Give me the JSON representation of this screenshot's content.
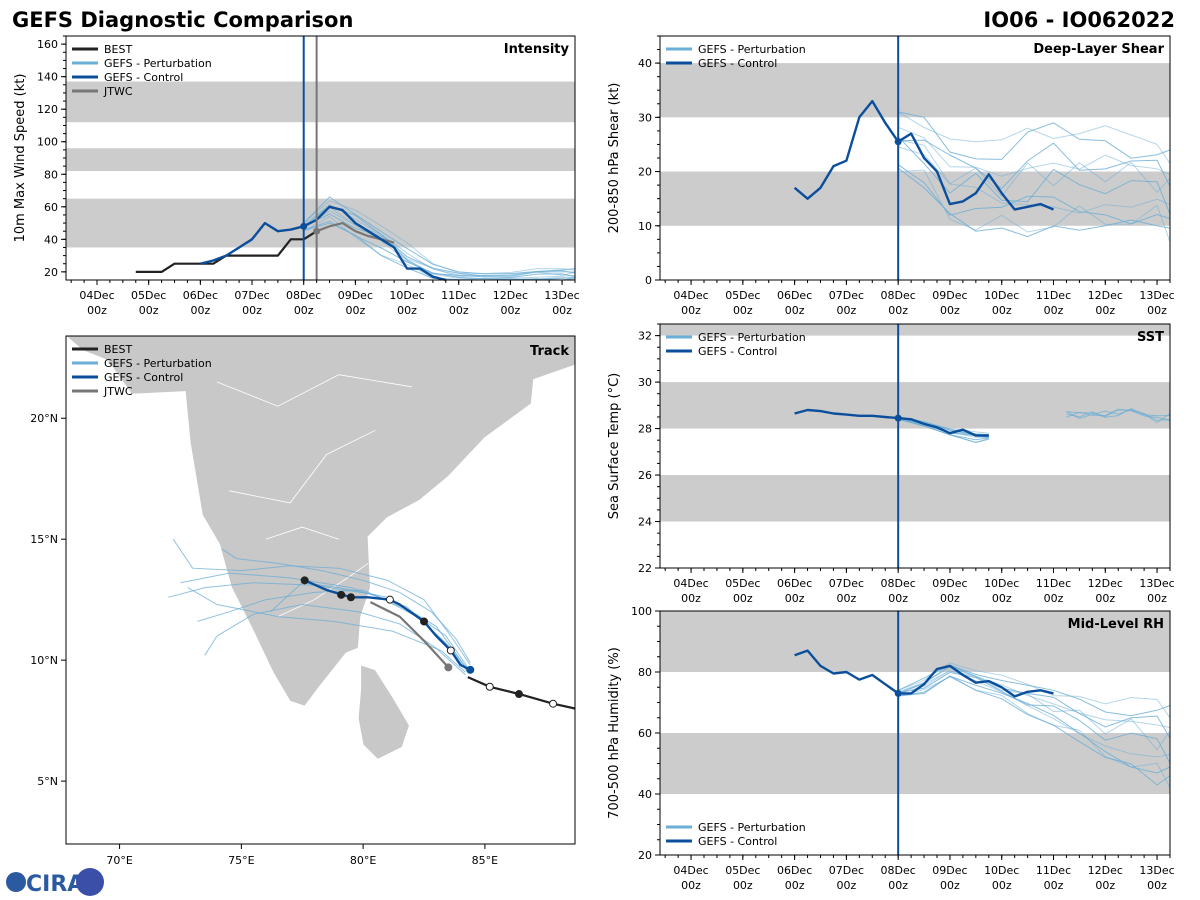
{
  "header": {
    "title": "GEFS Diagnostic Comparison",
    "storm_id": "IO06 - IO062022"
  },
  "logo": {
    "text": "CIRA"
  },
  "colors": {
    "best": "#222222",
    "perturbation": "#6baed6",
    "control": "#0b4f9c",
    "jtwc": "#777777",
    "band": "#cccccc",
    "land": "#c8c8c8"
  },
  "time_ticks": [
    "04Dec",
    "05Dec",
    "06Dec",
    "07Dec",
    "08Dec",
    "09Dec",
    "10Dec",
    "11Dec",
    "12Dec",
    "13Dec"
  ],
  "time_tick_sub": "00z",
  "chart_data": [
    {
      "id": "intensity",
      "type": "line",
      "title": "Intensity",
      "ylabel": "10m Max Wind Speed (kt)",
      "ylim": [
        15,
        165
      ],
      "yticks": [
        20,
        40,
        60,
        80,
        100,
        120,
        140,
        160
      ],
      "xlim": [
        3.4,
        13.25
      ],
      "init_day": 8.0,
      "jtwc_day": 8.25,
      "bands": [
        [
          35,
          65
        ],
        [
          82,
          96
        ],
        [
          112,
          137
        ]
      ],
      "legend": [
        "BEST",
        "GEFS - Perturbation",
        "GEFS - Control",
        "JTWC"
      ],
      "best": {
        "x": [
          4.75,
          5.0,
          5.25,
          5.5,
          5.75,
          6.0,
          6.25,
          6.5,
          6.75,
          7.0,
          7.25,
          7.5,
          7.75,
          8.0,
          8.25
        ],
        "y": [
          20,
          20,
          20,
          25,
          25,
          25,
          25,
          30,
          30,
          30,
          30,
          30,
          40,
          40,
          45
        ]
      },
      "jtwc": {
        "x": [
          8.25,
          8.5,
          8.75,
          9.0,
          9.25,
          9.5,
          9.75
        ],
        "y": [
          45,
          48,
          50,
          45,
          42,
          40,
          38
        ]
      },
      "control": {
        "x": [
          6.0,
          6.25,
          6.5,
          6.75,
          7.0,
          7.25,
          7.5,
          7.75,
          8.0,
          8.25,
          8.5,
          8.75,
          9.0,
          9.25,
          9.5,
          9.75,
          10.0,
          10.25,
          10.5,
          10.75
        ],
        "y": [
          25,
          27,
          30,
          35,
          40,
          50,
          45,
          46,
          48,
          52,
          60,
          58,
          50,
          45,
          40,
          35,
          22,
          22,
          17,
          15
        ]
      },
      "perturbation_spread": {
        "x": [
          8.0,
          8.5,
          9.0,
          9.5,
          10.0,
          10.5,
          11.0,
          11.5,
          12.0,
          12.5,
          13.0,
          13.25
        ],
        "lo": [
          45,
          50,
          40,
          30,
          20,
          16,
          15,
          15,
          15,
          15,
          15,
          15
        ],
        "hi": [
          50,
          66,
          58,
          50,
          38,
          25,
          20,
          19,
          20,
          22,
          22,
          22
        ]
      },
      "markers": [
        {
          "series": "control",
          "x": 8.0,
          "y": 48
        },
        {
          "series": "jtwc",
          "x": 8.25,
          "y": 45
        }
      ]
    },
    {
      "id": "shear",
      "type": "line",
      "title": "Deep-Layer Shear",
      "ylabel": "200-850 hPa Shear (kt)",
      "ylim": [
        0,
        45
      ],
      "yticks": [
        0,
        10,
        20,
        30,
        40
      ],
      "xlim": [
        3.4,
        13.25
      ],
      "init_day": 8.0,
      "bands": [
        [
          10,
          20
        ],
        [
          30,
          40
        ]
      ],
      "legend": [
        "GEFS - Perturbation",
        "GEFS - Control"
      ],
      "control": {
        "x": [
          6.0,
          6.25,
          6.5,
          6.75,
          7.0,
          7.25,
          7.5,
          7.75,
          8.0,
          8.25,
          8.5,
          8.75,
          9.0,
          9.25,
          9.5,
          9.75,
          10.0,
          10.25,
          10.5,
          10.75,
          11.0
        ],
        "y": [
          17,
          15,
          17,
          21,
          22,
          30,
          33,
          29,
          25.5,
          27,
          22.5,
          20,
          14,
          14.5,
          16,
          19.5,
          16,
          13,
          13.5,
          14,
          13
        ]
      },
      "perturbation_spread": {
        "x": [
          8.0,
          8.5,
          9.0,
          9.5,
          10.0,
          10.5,
          11.0,
          11.5,
          12.0,
          12.5,
          13.0,
          13.25
        ],
        "lo": [
          20,
          17,
          10,
          9,
          7,
          8,
          9,
          9,
          10,
          9,
          10,
          7
        ],
        "hi": [
          31,
          30,
          26,
          27,
          26,
          28,
          29,
          27,
          30,
          27,
          25,
          24
        ]
      },
      "markers": [
        {
          "series": "control",
          "x": 8.0,
          "y": 25.5
        }
      ]
    },
    {
      "id": "sst",
      "type": "line",
      "title": "SST",
      "ylabel": "Sea Surface Temp (°C)",
      "ylim": [
        22,
        32.5
      ],
      "yticks": [
        22,
        24,
        26,
        28,
        30,
        32
      ],
      "xlim": [
        3.4,
        13.25
      ],
      "init_day": 8.0,
      "bands": [
        [
          24,
          26
        ],
        [
          28,
          30
        ],
        [
          32,
          32.5
        ]
      ],
      "legend": [
        "GEFS - Perturbation",
        "GEFS - Control"
      ],
      "control": {
        "x": [
          6.0,
          6.25,
          6.5,
          6.75,
          7.0,
          7.25,
          7.5,
          7.75,
          8.0,
          8.25,
          8.5,
          8.75,
          9.0,
          9.25,
          9.5,
          9.75
        ],
        "y": [
          28.65,
          28.8,
          28.75,
          28.65,
          28.6,
          28.55,
          28.55,
          28.5,
          28.45,
          28.4,
          28.2,
          28.05,
          27.8,
          27.95,
          27.7,
          27.7
        ]
      },
      "perturbation_spread": {
        "x": [
          8.0,
          8.5,
          9.0,
          9.5,
          9.75
        ],
        "lo": [
          28.4,
          28.1,
          27.7,
          27.4,
          27.5
        ],
        "hi": [
          28.5,
          28.3,
          28.0,
          27.9,
          27.8
        ]
      },
      "perturbation_late": {
        "x": [
          11.25,
          11.5,
          11.75,
          12.0,
          12.25,
          12.5,
          12.75,
          13.0,
          13.25
        ],
        "y": [
          28.6,
          28.55,
          28.65,
          28.6,
          28.7,
          28.9,
          28.5,
          28.4,
          28.5
        ]
      },
      "markers": [
        {
          "series": "control",
          "x": 8.0,
          "y": 28.45
        }
      ]
    },
    {
      "id": "rh",
      "type": "line",
      "title": "Mid-Level RH",
      "ylabel": "700-500 hPa Humidity (%)",
      "ylim": [
        20,
        100
      ],
      "yticks": [
        20,
        40,
        60,
        80,
        100
      ],
      "xlim": [
        3.4,
        13.25
      ],
      "init_day": 8.0,
      "bands": [
        [
          40,
          60
        ],
        [
          80,
          100
        ]
      ],
      "legend": [
        "GEFS - Perturbation",
        "GEFS - Control"
      ],
      "control": {
        "x": [
          6.0,
          6.25,
          6.5,
          6.75,
          7.0,
          7.25,
          7.5,
          7.75,
          8.0,
          8.25,
          8.5,
          8.75,
          9.0,
          9.25,
          9.5,
          9.75,
          10.0,
          10.25,
          10.5,
          10.75,
          11.0
        ],
        "y": [
          85.5,
          87,
          82,
          79.5,
          80,
          77.5,
          79,
          76,
          73,
          73,
          76,
          81,
          82,
          79,
          76.5,
          77,
          75,
          72,
          73.5,
          74,
          73
        ]
      },
      "perturbation_spread": {
        "x": [
          8.0,
          8.5,
          9.0,
          9.5,
          10.0,
          10.5,
          11.0,
          11.5,
          12.0,
          12.5,
          13.0,
          13.25
        ],
        "lo": [
          72,
          73,
          78,
          74,
          70,
          66,
          62,
          57,
          52,
          47,
          43,
          42
        ],
        "hi": [
          74,
          78,
          83,
          81,
          79,
          76,
          74,
          72,
          71,
          72,
          71,
          69
        ]
      },
      "markers": [
        {
          "series": "control",
          "x": 8.0,
          "y": 73
        }
      ]
    },
    {
      "id": "track",
      "type": "line",
      "title": "Track",
      "lon_range": [
        67.8,
        88.7
      ],
      "lat_range": [
        2.4,
        23.4
      ],
      "lon_ticks": [
        "70°E",
        "75°E",
        "80°E",
        "85°E"
      ],
      "lon_tick_values": [
        70,
        75,
        80,
        85
      ],
      "lat_ticks": [
        "5°N",
        "10°N",
        "15°N",
        "20°N"
      ],
      "lat_tick_values": [
        5,
        10,
        15,
        20
      ],
      "legend": [
        "BEST",
        "GEFS - Perturbation",
        "GEFS - Control",
        "JTWC"
      ],
      "best": {
        "lon": [
          88.7,
          87.8,
          86.4,
          85.2,
          84.3
        ],
        "lat": [
          8.0,
          8.2,
          8.6,
          8.9,
          9.3
        ]
      },
      "control": {
        "lon": [
          84.4,
          84.0,
          83.6,
          83.0,
          82.5,
          81.5,
          81.1,
          80.2,
          79.5,
          78.5,
          77.6
        ],
        "lat": [
          9.6,
          9.8,
          10.4,
          11.0,
          11.6,
          12.3,
          12.5,
          12.6,
          12.6,
          12.9,
          13.3
        ]
      },
      "jtwc": {
        "lon": [
          83.5,
          82.5,
          81.5,
          80.3
        ],
        "lat": [
          9.7,
          10.8,
          11.8,
          12.4
        ]
      },
      "perturbation_tracks": [
        {
          "lon": [
            84.3,
            83.5,
            82.2,
            80.5,
            78.0,
            75.5,
            73.5,
            72.0
          ],
          "lat": [
            9.6,
            10.6,
            11.8,
            12.7,
            13.1,
            13.2,
            13.0,
            12.6
          ]
        },
        {
          "lon": [
            84.3,
            83.3,
            81.8,
            79.5,
            77.0,
            74.5,
            72.5
          ],
          "lat": [
            9.5,
            10.8,
            12.2,
            13.0,
            13.4,
            13.6,
            13.2
          ]
        },
        {
          "lon": [
            84.2,
            83.0,
            81.5,
            79.8,
            77.5,
            75.5,
            74.0,
            73.5
          ],
          "lat": [
            9.4,
            10.5,
            11.5,
            12.0,
            12.3,
            11.9,
            11.0,
            10.2
          ]
        },
        {
          "lon": [
            84.4,
            83.6,
            82.5,
            81.0,
            79.0,
            77.0,
            75.0,
            73.0,
            72.2
          ],
          "lat": [
            9.8,
            11.0,
            12.5,
            13.3,
            13.8,
            13.9,
            13.7,
            13.8,
            15.0
          ]
        },
        {
          "lon": [
            84.3,
            83.4,
            82.0,
            80.0,
            78.0,
            76.0,
            74.5,
            73.2
          ],
          "lat": [
            9.7,
            11.0,
            12.0,
            12.9,
            12.8,
            12.5,
            12.0,
            11.6
          ]
        },
        {
          "lon": [
            84.2,
            83.2,
            81.2,
            78.8,
            76.5,
            74.0,
            72.8
          ],
          "lat": [
            9.5,
            10.4,
            11.2,
            11.6,
            11.8,
            12.3,
            13.0
          ]
        },
        {
          "lon": [
            84.4,
            83.8,
            82.8,
            81.5,
            80.0,
            78.3,
            76.5,
            74.8,
            74.2
          ],
          "lat": [
            9.9,
            10.9,
            12.0,
            12.8,
            13.3,
            13.7,
            14.0,
            14.2,
            14.6
          ]
        },
        {
          "lon": [
            84.3,
            83.0,
            81.0,
            79.0,
            77.5,
            76.2
          ],
          "lat": [
            9.6,
            11.4,
            12.6,
            13.0,
            13.2,
            12.0
          ]
        }
      ],
      "markers": [
        {
          "series": "best",
          "lon": 86.4,
          "lat": 8.6
        },
        {
          "series": "best",
          "lon": 85.2,
          "lat": 8.9
        },
        {
          "series": "best",
          "lon": 87.8,
          "lat": 8.2
        },
        {
          "series": "control",
          "lon": 84.4,
          "lat": 9.6
        },
        {
          "series": "best",
          "lon": 83.6,
          "lat": 10.4
        },
        {
          "series": "best",
          "lon": 82.5,
          "lat": 11.6
        },
        {
          "series": "best",
          "lon": 81.1,
          "lat": 12.5
        },
        {
          "series": "best",
          "lon": 79.5,
          "lat": 12.6
        },
        {
          "series": "best",
          "lon": 79.1,
          "lat": 12.7
        },
        {
          "series": "best",
          "lon": 77.6,
          "lat": 13.3
        },
        {
          "series": "jtwc",
          "lon": 83.5,
          "lat": 9.7
        }
      ]
    }
  ]
}
